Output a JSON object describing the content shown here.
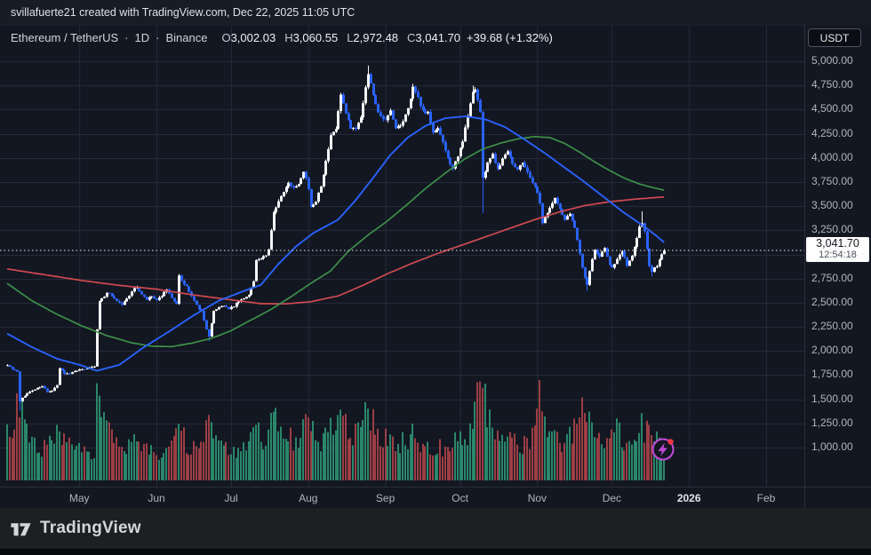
{
  "attribution": {
    "text": "svillafuerte21 created with TradingView.com, Dec 22, 2025 11:05 UTC"
  },
  "legend": {
    "symbol": "Ethereum / TetherUS",
    "separator": "·",
    "interval": "1D",
    "exchange": "Binance",
    "open_label": "O",
    "open": "3,002.03",
    "high_label": "H",
    "high": "3,060.55",
    "low_label": "L",
    "low": "2,972.48",
    "close_label": "C",
    "close": "3,041.70",
    "change": "+39.68 (+1.32%)"
  },
  "price_axis": {
    "currency_button": "USDT",
    "ticks": [
      {
        "label": "5,000.00",
        "price": 5000
      },
      {
        "label": "4,750.00",
        "price": 4750
      },
      {
        "label": "4,500.00",
        "price": 4500
      },
      {
        "label": "4,250.00",
        "price": 4250
      },
      {
        "label": "4,000.00",
        "price": 4000
      },
      {
        "label": "3,750.00",
        "price": 3750
      },
      {
        "label": "3,500.00",
        "price": 3500
      },
      {
        "label": "3,250.00",
        "price": 3250
      },
      {
        "label": "2,750.00",
        "price": 2750
      },
      {
        "label": "2,500.00",
        "price": 2500
      },
      {
        "label": "2,250.00",
        "price": 2250
      },
      {
        "label": "2,000.00",
        "price": 2000
      },
      {
        "label": "1,750.00",
        "price": 1750
      },
      {
        "label": "1,500.00",
        "price": 1500
      },
      {
        "label": "1,250.00",
        "price": 1250
      },
      {
        "label": "1,000.00",
        "price": 1000
      }
    ],
    "last_price_label": "3,041.70",
    "countdown": "12:54:18"
  },
  "footer": {
    "brand": "TradingView"
  },
  "chart_data": {
    "type": "candlestick",
    "title": "Ethereum / TetherUS · 1D · Binance",
    "symbol": "ETHUSDT",
    "interval": "1D",
    "exchange": "Binance",
    "last_ohlc": {
      "open": 3002.03,
      "high": 3060.55,
      "low": 2972.48,
      "close": 3041.7,
      "change": 39.68,
      "change_pct": 1.32
    },
    "last_price": 3041.7,
    "ylim": [
      1000,
      5000
    ],
    "y_gridlines": [
      1000,
      1250,
      1500,
      1750,
      2000,
      2250,
      2500,
      2750,
      3000,
      3250,
      3500,
      3750,
      4000,
      4250,
      4500,
      4750,
      5000
    ],
    "x_months": [
      {
        "label": "May",
        "day": 29
      },
      {
        "label": "Jun",
        "day": 60
      },
      {
        "label": "Jul",
        "day": 90
      },
      {
        "label": "Aug",
        "day": 121
      },
      {
        "label": "Sep",
        "day": 152
      },
      {
        "label": "Oct",
        "day": 182
      },
      {
        "label": "Nov",
        "day": 213
      },
      {
        "label": "Dec",
        "day": 243
      },
      {
        "label": "2026",
        "day": 274,
        "bold": true
      },
      {
        "label": "Feb",
        "day": 305
      }
    ],
    "candles_end_day": 264,
    "price_path_keypoints": [
      [
        0,
        1860
      ],
      [
        2,
        1810
      ],
      [
        4,
        1790
      ],
      [
        5,
        1480
      ],
      [
        6,
        1520
      ],
      [
        8,
        1560
      ],
      [
        10,
        1590
      ],
      [
        12,
        1615
      ],
      [
        14,
        1640
      ],
      [
        16,
        1575
      ],
      [
        18,
        1585
      ],
      [
        20,
        1645
      ],
      [
        21,
        1820
      ],
      [
        23,
        1770
      ],
      [
        25,
        1760
      ],
      [
        27,
        1795
      ],
      [
        29,
        1805
      ],
      [
        31,
        1815
      ],
      [
        33,
        1835
      ],
      [
        35,
        1845
      ],
      [
        36,
        2230
      ],
      [
        37,
        2520
      ],
      [
        39,
        2560
      ],
      [
        40,
        2610
      ],
      [
        42,
        2570
      ],
      [
        44,
        2520
      ],
      [
        46,
        2480
      ],
      [
        48,
        2540
      ],
      [
        50,
        2620
      ],
      [
        52,
        2665
      ],
      [
        54,
        2580
      ],
      [
        56,
        2530
      ],
      [
        58,
        2565
      ],
      [
        60,
        2520
      ],
      [
        62,
        2575
      ],
      [
        64,
        2630
      ],
      [
        66,
        2545
      ],
      [
        68,
        2495
      ],
      [
        69,
        2775
      ],
      [
        70,
        2720
      ],
      [
        72,
        2665
      ],
      [
        74,
        2560
      ],
      [
        76,
        2470
      ],
      [
        78,
        2410
      ],
      [
        80,
        2230
      ],
      [
        81,
        2145
      ],
      [
        82,
        2280
      ],
      [
        83,
        2420
      ],
      [
        85,
        2455
      ],
      [
        87,
        2475
      ],
      [
        89,
        2430
      ],
      [
        91,
        2465
      ],
      [
        93,
        2515
      ],
      [
        95,
        2540
      ],
      [
        97,
        2590
      ],
      [
        99,
        2720
      ],
      [
        100,
        2940
      ],
      [
        102,
        2955
      ],
      [
        104,
        2985
      ],
      [
        105,
        3060
      ],
      [
        107,
        3450
      ],
      [
        109,
        3550
      ],
      [
        111,
        3640
      ],
      [
        113,
        3750
      ],
      [
        115,
        3690
      ],
      [
        117,
        3740
      ],
      [
        119,
        3870
      ],
      [
        120,
        3790
      ],
      [
        121,
        3680
      ],
      [
        122,
        3480
      ],
      [
        124,
        3560
      ],
      [
        126,
        3720
      ],
      [
        128,
        3960
      ],
      [
        130,
        4220
      ],
      [
        132,
        4300
      ],
      [
        134,
        4650
      ],
      [
        136,
        4450
      ],
      [
        138,
        4300
      ],
      [
        140,
        4310
      ],
      [
        142,
        4430
      ],
      [
        144,
        4730
      ],
      [
        145,
        4860
      ],
      [
        146,
        4780
      ],
      [
        148,
        4550
      ],
      [
        150,
        4420
      ],
      [
        152,
        4380
      ],
      [
        154,
        4480
      ],
      [
        156,
        4300
      ],
      [
        158,
        4330
      ],
      [
        160,
        4440
      ],
      [
        162,
        4620
      ],
      [
        163,
        4720
      ],
      [
        165,
        4620
      ],
      [
        167,
        4480
      ],
      [
        169,
        4460
      ],
      [
        171,
        4250
      ],
      [
        173,
        4320
      ],
      [
        175,
        4150
      ],
      [
        177,
        4000
      ],
      [
        179,
        3890
      ],
      [
        181,
        4010
      ],
      [
        183,
        4180
      ],
      [
        185,
        4430
      ],
      [
        187,
        4680
      ],
      [
        188,
        4720
      ],
      [
        190,
        4480
      ],
      [
        191,
        3780
      ],
      [
        193,
        3960
      ],
      [
        195,
        4040
      ],
      [
        197,
        3880
      ],
      [
        199,
        3990
      ],
      [
        201,
        4080
      ],
      [
        203,
        3950
      ],
      [
        205,
        3880
      ],
      [
        207,
        3960
      ],
      [
        209,
        3850
      ],
      [
        211,
        3750
      ],
      [
        213,
        3640
      ],
      [
        214,
        3540
      ],
      [
        215,
        3330
      ],
      [
        216,
        3390
      ],
      [
        218,
        3480
      ],
      [
        220,
        3580
      ],
      [
        222,
        3470
      ],
      [
        224,
        3360
      ],
      [
        226,
        3430
      ],
      [
        228,
        3280
      ],
      [
        229,
        3150
      ],
      [
        230,
        3000
      ],
      [
        231,
        2870
      ],
      [
        232,
        2750
      ],
      [
        233,
        2680
      ],
      [
        234,
        2820
      ],
      [
        235,
        2960
      ],
      [
        236,
        3040
      ],
      [
        238,
        2980
      ],
      [
        240,
        3060
      ],
      [
        242,
        2900
      ],
      [
        243,
        2870
      ],
      [
        245,
        2950
      ],
      [
        247,
        3030
      ],
      [
        249,
        2890
      ],
      [
        251,
        2980
      ],
      [
        253,
        3180
      ],
      [
        254,
        3290
      ],
      [
        255,
        3330
      ],
      [
        256,
        3240
      ],
      [
        257,
        3060
      ],
      [
        258,
        2890
      ],
      [
        259,
        2830
      ],
      [
        260,
        2870
      ],
      [
        261,
        2890
      ],
      [
        262,
        2950
      ],
      [
        263,
        3002.03
      ],
      [
        264,
        3041.7
      ]
    ],
    "wick_events": {
      "5": {
        "low": 1380
      },
      "81": {
        "low": 2100
      },
      "145": {
        "high": 4955
      },
      "163": {
        "high": 4760
      },
      "187": {
        "high": 4750
      },
      "191": {
        "low": 3430
      },
      "233": {
        "low": 2620
      },
      "255": {
        "high": 3446
      },
      "259": {
        "low": 2772
      }
    },
    "moving_averages": [
      {
        "name": "ma-fast-blue",
        "color": "#2962ff",
        "width": 1.9,
        "points": [
          [
            0,
            2180
          ],
          [
            10,
            2040
          ],
          [
            20,
            1920
          ],
          [
            30,
            1850
          ],
          [
            36,
            1795
          ],
          [
            45,
            1855
          ],
          [
            55,
            2040
          ],
          [
            65,
            2200
          ],
          [
            75,
            2370
          ],
          [
            85,
            2520
          ],
          [
            95,
            2620
          ],
          [
            102,
            2685
          ],
          [
            109,
            2900
          ],
          [
            116,
            3080
          ],
          [
            123,
            3220
          ],
          [
            133,
            3360
          ],
          [
            140,
            3560
          ],
          [
            147,
            3790
          ],
          [
            154,
            4030
          ],
          [
            161,
            4210
          ],
          [
            168,
            4330
          ],
          [
            176,
            4410
          ],
          [
            184,
            4430
          ],
          [
            192,
            4400
          ],
          [
            200,
            4320
          ],
          [
            208,
            4190
          ],
          [
            216,
            4050
          ],
          [
            224,
            3900
          ],
          [
            232,
            3750
          ],
          [
            240,
            3590
          ],
          [
            248,
            3430
          ],
          [
            256,
            3290
          ],
          [
            261,
            3190
          ],
          [
            264,
            3125
          ]
        ]
      },
      {
        "name": "ma-mid-green",
        "color": "#3c9047",
        "width": 1.7,
        "points": [
          [
            0,
            2700
          ],
          [
            10,
            2520
          ],
          [
            20,
            2380
          ],
          [
            30,
            2260
          ],
          [
            40,
            2160
          ],
          [
            50,
            2085
          ],
          [
            58,
            2050
          ],
          [
            66,
            2045
          ],
          [
            74,
            2080
          ],
          [
            82,
            2130
          ],
          [
            90,
            2210
          ],
          [
            98,
            2320
          ],
          [
            106,
            2430
          ],
          [
            114,
            2560
          ],
          [
            122,
            2700
          ],
          [
            130,
            2830
          ],
          [
            137,
            3030
          ],
          [
            145,
            3200
          ],
          [
            152,
            3330
          ],
          [
            160,
            3500
          ],
          [
            168,
            3680
          ],
          [
            176,
            3840
          ],
          [
            184,
            3990
          ],
          [
            191,
            4090
          ],
          [
            198,
            4150
          ],
          [
            205,
            4195
          ],
          [
            212,
            4220
          ],
          [
            218,
            4210
          ],
          [
            224,
            4150
          ],
          [
            230,
            4060
          ],
          [
            236,
            3960
          ],
          [
            242,
            3870
          ],
          [
            248,
            3790
          ],
          [
            254,
            3730
          ],
          [
            259,
            3695
          ],
          [
            264,
            3665
          ]
        ]
      },
      {
        "name": "ma-slow-red",
        "color": "#cf4a4f",
        "width": 1.7,
        "points": [
          [
            0,
            2850
          ],
          [
            15,
            2790
          ],
          [
            30,
            2730
          ],
          [
            45,
            2680
          ],
          [
            60,
            2640
          ],
          [
            75,
            2580
          ],
          [
            90,
            2530
          ],
          [
            102,
            2490
          ],
          [
            112,
            2488
          ],
          [
            122,
            2510
          ],
          [
            133,
            2570
          ],
          [
            143,
            2680
          ],
          [
            152,
            2790
          ],
          [
            162,
            2900
          ],
          [
            172,
            3000
          ],
          [
            182,
            3090
          ],
          [
            192,
            3180
          ],
          [
            202,
            3270
          ],
          [
            212,
            3360
          ],
          [
            222,
            3440
          ],
          [
            232,
            3505
          ],
          [
            242,
            3545
          ],
          [
            252,
            3572
          ],
          [
            264,
            3595
          ]
        ]
      }
    ],
    "volume_profile_keypoints": [
      [
        0,
        0.5
      ],
      [
        3,
        0.55
      ],
      [
        5,
        0.8
      ],
      [
        8,
        0.45
      ],
      [
        12,
        0.3
      ],
      [
        16,
        0.35
      ],
      [
        21,
        0.45
      ],
      [
        26,
        0.3
      ],
      [
        31,
        0.28
      ],
      [
        35,
        0.3
      ],
      [
        36,
        0.85
      ],
      [
        37,
        0.75
      ],
      [
        40,
        0.5
      ],
      [
        44,
        0.35
      ],
      [
        48,
        0.3
      ],
      [
        52,
        0.38
      ],
      [
        56,
        0.3
      ],
      [
        60,
        0.28
      ],
      [
        64,
        0.33
      ],
      [
        69,
        0.5
      ],
      [
        73,
        0.32
      ],
      [
        77,
        0.3
      ],
      [
        81,
        0.58
      ],
      [
        85,
        0.35
      ],
      [
        90,
        0.27
      ],
      [
        95,
        0.3
      ],
      [
        100,
        0.5
      ],
      [
        104,
        0.4
      ],
      [
        107,
        0.6
      ],
      [
        111,
        0.45
      ],
      [
        115,
        0.42
      ],
      [
        119,
        0.5
      ],
      [
        122,
        0.55
      ],
      [
        126,
        0.4
      ],
      [
        130,
        0.5
      ],
      [
        134,
        0.6
      ],
      [
        138,
        0.45
      ],
      [
        142,
        0.5
      ],
      [
        145,
        0.68
      ],
      [
        148,
        0.5
      ],
      [
        152,
        0.42
      ],
      [
        156,
        0.36
      ],
      [
        160,
        0.38
      ],
      [
        163,
        0.45
      ],
      [
        167,
        0.38
      ],
      [
        171,
        0.35
      ],
      [
        175,
        0.33
      ],
      [
        179,
        0.38
      ],
      [
        183,
        0.42
      ],
      [
        187,
        0.55
      ],
      [
        189,
        0.8
      ],
      [
        191,
        1.0
      ],
      [
        193,
        0.62
      ],
      [
        196,
        0.45
      ],
      [
        200,
        0.4
      ],
      [
        204,
        0.36
      ],
      [
        208,
        0.35
      ],
      [
        212,
        0.5
      ],
      [
        214,
        0.82
      ],
      [
        216,
        0.6
      ],
      [
        219,
        0.42
      ],
      [
        222,
        0.38
      ],
      [
        225,
        0.45
      ],
      [
        228,
        0.5
      ],
      [
        230,
        0.6
      ],
      [
        232,
        0.72
      ],
      [
        233,
        0.8
      ],
      [
        235,
        0.55
      ],
      [
        237,
        0.48
      ],
      [
        240,
        0.4
      ],
      [
        243,
        0.45
      ],
      [
        245,
        0.5
      ],
      [
        248,
        0.38
      ],
      [
        251,
        0.35
      ],
      [
        253,
        0.45
      ],
      [
        255,
        0.52
      ],
      [
        257,
        0.48
      ],
      [
        259,
        0.55
      ],
      [
        261,
        0.4
      ],
      [
        263,
        0.35
      ],
      [
        264,
        0.3
      ]
    ],
    "colors": {
      "up_candle": "#f5f6f8",
      "down_candle": "#2962ff",
      "volume_up": "#2d9472",
      "volume_down": "#ac4348",
      "grid": "#232938",
      "last_price_line": "#e8eaef",
      "background": "#131722",
      "bolt_icon": "#c44bd9",
      "bolt_badge": "#f23645"
    }
  }
}
